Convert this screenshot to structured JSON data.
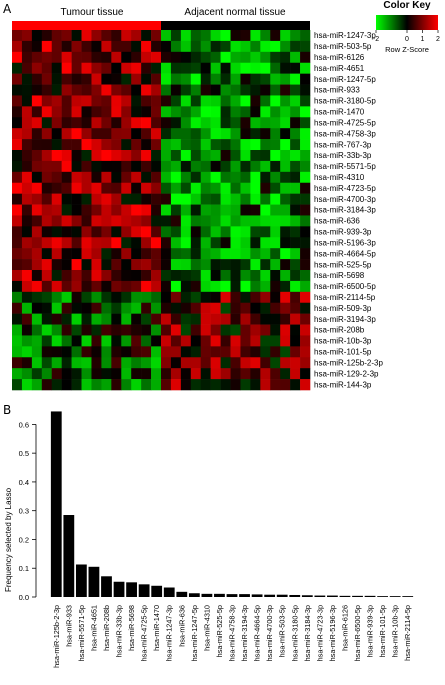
{
  "panels": {
    "a": "A",
    "b": "B"
  },
  "colors": {
    "tumour": "#ff0000",
    "normal": "#000000",
    "low": "#00ff00",
    "mid": "#000000",
    "high": "#ff0000",
    "bar": "#000000"
  },
  "chart_data": [
    {
      "type": "heatmap",
      "title": "",
      "group_labels": [
        "Tumour tissue",
        "Adjacent normal tissue"
      ],
      "n_tumour_samples": 15,
      "n_normal_samples": 15,
      "rows": [
        "hsa-miR-1247-3p",
        "hsa-miR-503-5p",
        "hsa-miR-6126",
        "hsa-miR-4651",
        "hsa-miR-1247-5p",
        "hsa-miR-933",
        "hsa-miR-3180-5p",
        "hsa-miR-1470",
        "hsa-miR-4725-5p",
        "hsa-miR-4758-3p",
        "hsa-miR-767-3p",
        "hsa-miR-33b-3p",
        "hsa-miR-5571-5p",
        "hsa-miR-4310",
        "hsa-miR-4723-5p",
        "hsa-miR-4700-3p",
        "hsa-miR-3184-3p",
        "hsa-miR-636",
        "hsa-miR-939-3p",
        "hsa-miR-5196-3p",
        "hsa-miR-4664-5p",
        "hsa-miR-525-5p",
        "hsa-miR-5698",
        "hsa-miR-6500-5p",
        "hsa-miR-2114-5p",
        "hsa-miR-509-3p",
        "hsa-miR-3194-3p",
        "hsa-miR-208b",
        "hsa-miR-10b-3p",
        "hsa-miR-101-5p",
        "hsa-miR-125b-2-3p",
        "hsa-miR-129-2-3p",
        "hsa-miR-144-3p"
      ],
      "color_key": {
        "title": "Color Key",
        "subtitle": "Row Z-Score",
        "ticks": [
          "-2",
          "0",
          "1",
          "2"
        ],
        "range": [
          -2,
          2
        ]
      }
    },
    {
      "type": "bar",
      "title": "",
      "xlabel": "",
      "ylabel": "Frequency selected by Lasso",
      "ylim": [
        0,
        0.65
      ],
      "yticks": [
        "0.0",
        "0.1",
        "0.2",
        "0.3",
        "0.4",
        "0.5",
        "0.6"
      ],
      "categories": [
        "hsa-miR-125b-2-3p",
        "hsa-miR-933",
        "hsa-miR-5571-5p",
        "hsa-miR-4651",
        "hsa-miR-208b",
        "hsa-miR-33b-3p",
        "hsa-miR-5698",
        "hsa-miR-4725-5p",
        "hsa-miR-1470",
        "hsa-miR-1247-3p",
        "hsa-miR-636",
        "hsa-miR-1247-5p",
        "hsa-miR-4310",
        "hsa-miR-525-5p",
        "hsa-miR-4758-3p",
        "hsa-miR-3194-3p",
        "hsa-miR-4664-5p",
        "hsa-miR-4700-3p",
        "hsa-miR-503-5p",
        "hsa-miR-3180-5p",
        "hsa-miR-3184-3p",
        "hsa-miR-4723-3p",
        "hsa-miR-5196-3p",
        "hsa-miR-6126",
        "hsa-miR-6500-5p",
        "hsa-miR-939-3p",
        "hsa-miR-101-5p",
        "hsa-miR-10b-3p",
        "hsa-miR-2114-5p"
      ],
      "values": [
        0.645,
        0.285,
        0.113,
        0.105,
        0.072,
        0.053,
        0.051,
        0.044,
        0.039,
        0.033,
        0.018,
        0.013,
        0.011,
        0.011,
        0.01,
        0.01,
        0.009,
        0.008,
        0.008,
        0.007,
        0.006,
        0.005,
        0.005,
        0.004,
        0.004,
        0.004,
        0.003,
        0.003,
        0.003
      ]
    }
  ]
}
